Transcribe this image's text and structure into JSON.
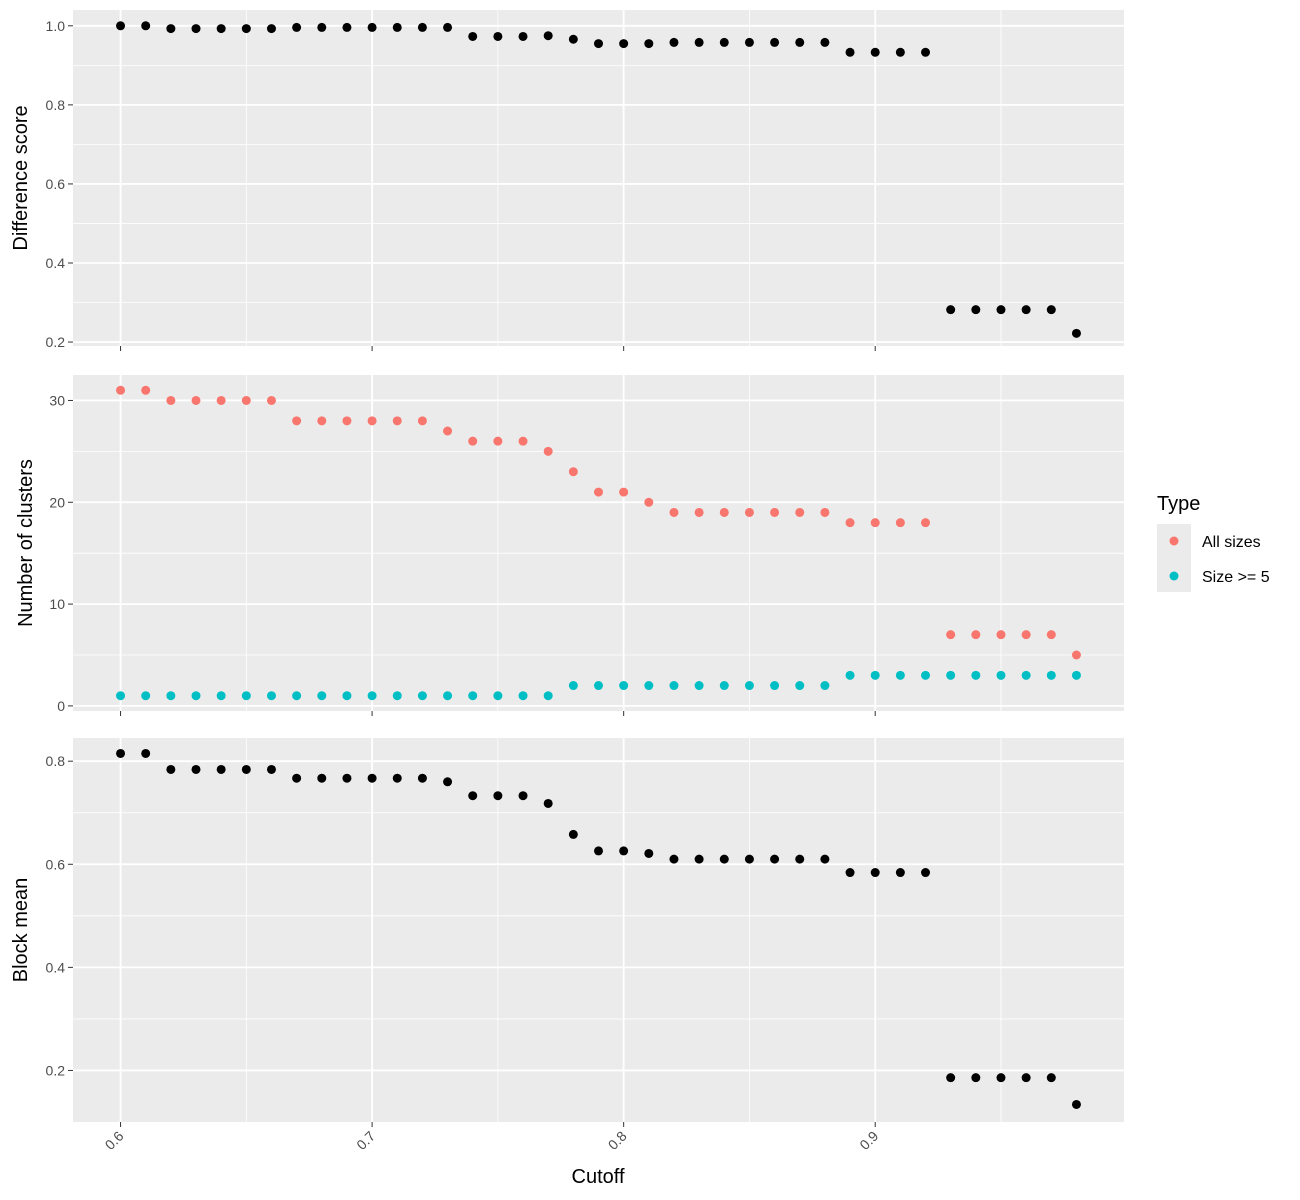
{
  "chart_data": {
    "type": "scatter",
    "x": [
      0.6,
      0.61,
      0.62,
      0.63,
      0.64,
      0.65,
      0.66,
      0.67,
      0.68,
      0.69,
      0.7,
      0.71,
      0.72,
      0.73,
      0.74,
      0.75,
      0.76,
      0.77,
      0.78,
      0.79,
      0.8,
      0.81,
      0.82,
      0.83,
      0.84,
      0.85,
      0.86,
      0.87,
      0.88,
      0.89,
      0.9,
      0.91,
      0.92,
      0.93,
      0.94,
      0.95,
      0.96,
      0.97,
      0.98
    ],
    "x_ticks": [
      "0.6",
      "0.7",
      "0.8",
      "0.9"
    ],
    "xlabel": "Cutoff",
    "xlim": [
      0.5811,
      0.9989
    ],
    "panels": [
      {
        "ylabel": "Difference score",
        "ylim": [
          0.19,
          1.04
        ],
        "y_ticks": [
          "0.2",
          "0.4",
          "0.6",
          "0.8",
          "1.0"
        ],
        "series": [
          {
            "values": [
              1.0,
              1.0,
              0.993,
              0.993,
              0.993,
              0.993,
              0.993,
              0.996,
              0.996,
              0.996,
              0.996,
              0.996,
              0.996,
              0.996,
              0.973,
              0.973,
              0.973,
              0.975,
              0.966,
              0.955,
              0.955,
              0.955,
              0.958,
              0.958,
              0.958,
              0.958,
              0.958,
              0.958,
              0.958,
              0.933,
              0.933,
              0.933,
              0.933,
              0.282,
              0.282,
              0.282,
              0.282,
              0.282,
              0.222
            ],
            "color": "#000000"
          }
        ]
      },
      {
        "ylabel": "Number of clusters",
        "ylim": [
          -0.5,
          32.5
        ],
        "y_ticks": [
          "0",
          "10",
          "20",
          "30"
        ],
        "series": [
          {
            "name": "All sizes",
            "values": [
              31,
              31,
              30,
              30,
              30,
              30,
              30,
              28,
              28,
              28,
              28,
              28,
              28,
              27,
              26,
              26,
              26,
              25,
              23,
              21,
              21,
              20,
              19,
              19,
              19,
              19,
              19,
              19,
              19,
              18,
              18,
              18,
              18,
              7,
              7,
              7,
              7,
              7,
              5
            ],
            "color": "#F8766D"
          },
          {
            "name": "Size >= 5",
            "values": [
              1,
              1,
              1,
              1,
              1,
              1,
              1,
              1,
              1,
              1,
              1,
              1,
              1,
              1,
              1,
              1,
              1,
              1,
              2,
              2,
              2,
              2,
              2,
              2,
              2,
              2,
              2,
              2,
              2,
              3,
              3,
              3,
              3,
              3,
              3,
              3,
              3,
              3,
              3
            ],
            "color": "#00BFC4"
          }
        ]
      },
      {
        "ylabel": "Block mean",
        "ylim": [
          0.1,
          0.845
        ],
        "y_ticks": [
          "0.2",
          "0.4",
          "0.6",
          "0.8"
        ],
        "series": [
          {
            "values": [
              0.815,
              0.815,
              0.784,
              0.784,
              0.784,
              0.784,
              0.784,
              0.767,
              0.767,
              0.767,
              0.767,
              0.767,
              0.767,
              0.76,
              0.733,
              0.733,
              0.733,
              0.718,
              0.658,
              0.626,
              0.626,
              0.621,
              0.61,
              0.61,
              0.61,
              0.61,
              0.61,
              0.61,
              0.61,
              0.584,
              0.584,
              0.584,
              0.584,
              0.186,
              0.186,
              0.186,
              0.186,
              0.186,
              0.134
            ],
            "color": "#000000"
          }
        ]
      }
    ],
    "legend": {
      "title": "Type",
      "placement": "right",
      "entries": [
        {
          "label": "All sizes",
          "color": "#F8766D"
        },
        {
          "label": "Size >= 5",
          "color": "#00BFC4"
        }
      ]
    },
    "grid": true,
    "panel_background": "#EBEBEB",
    "grid_color": "#FFFFFF"
  }
}
